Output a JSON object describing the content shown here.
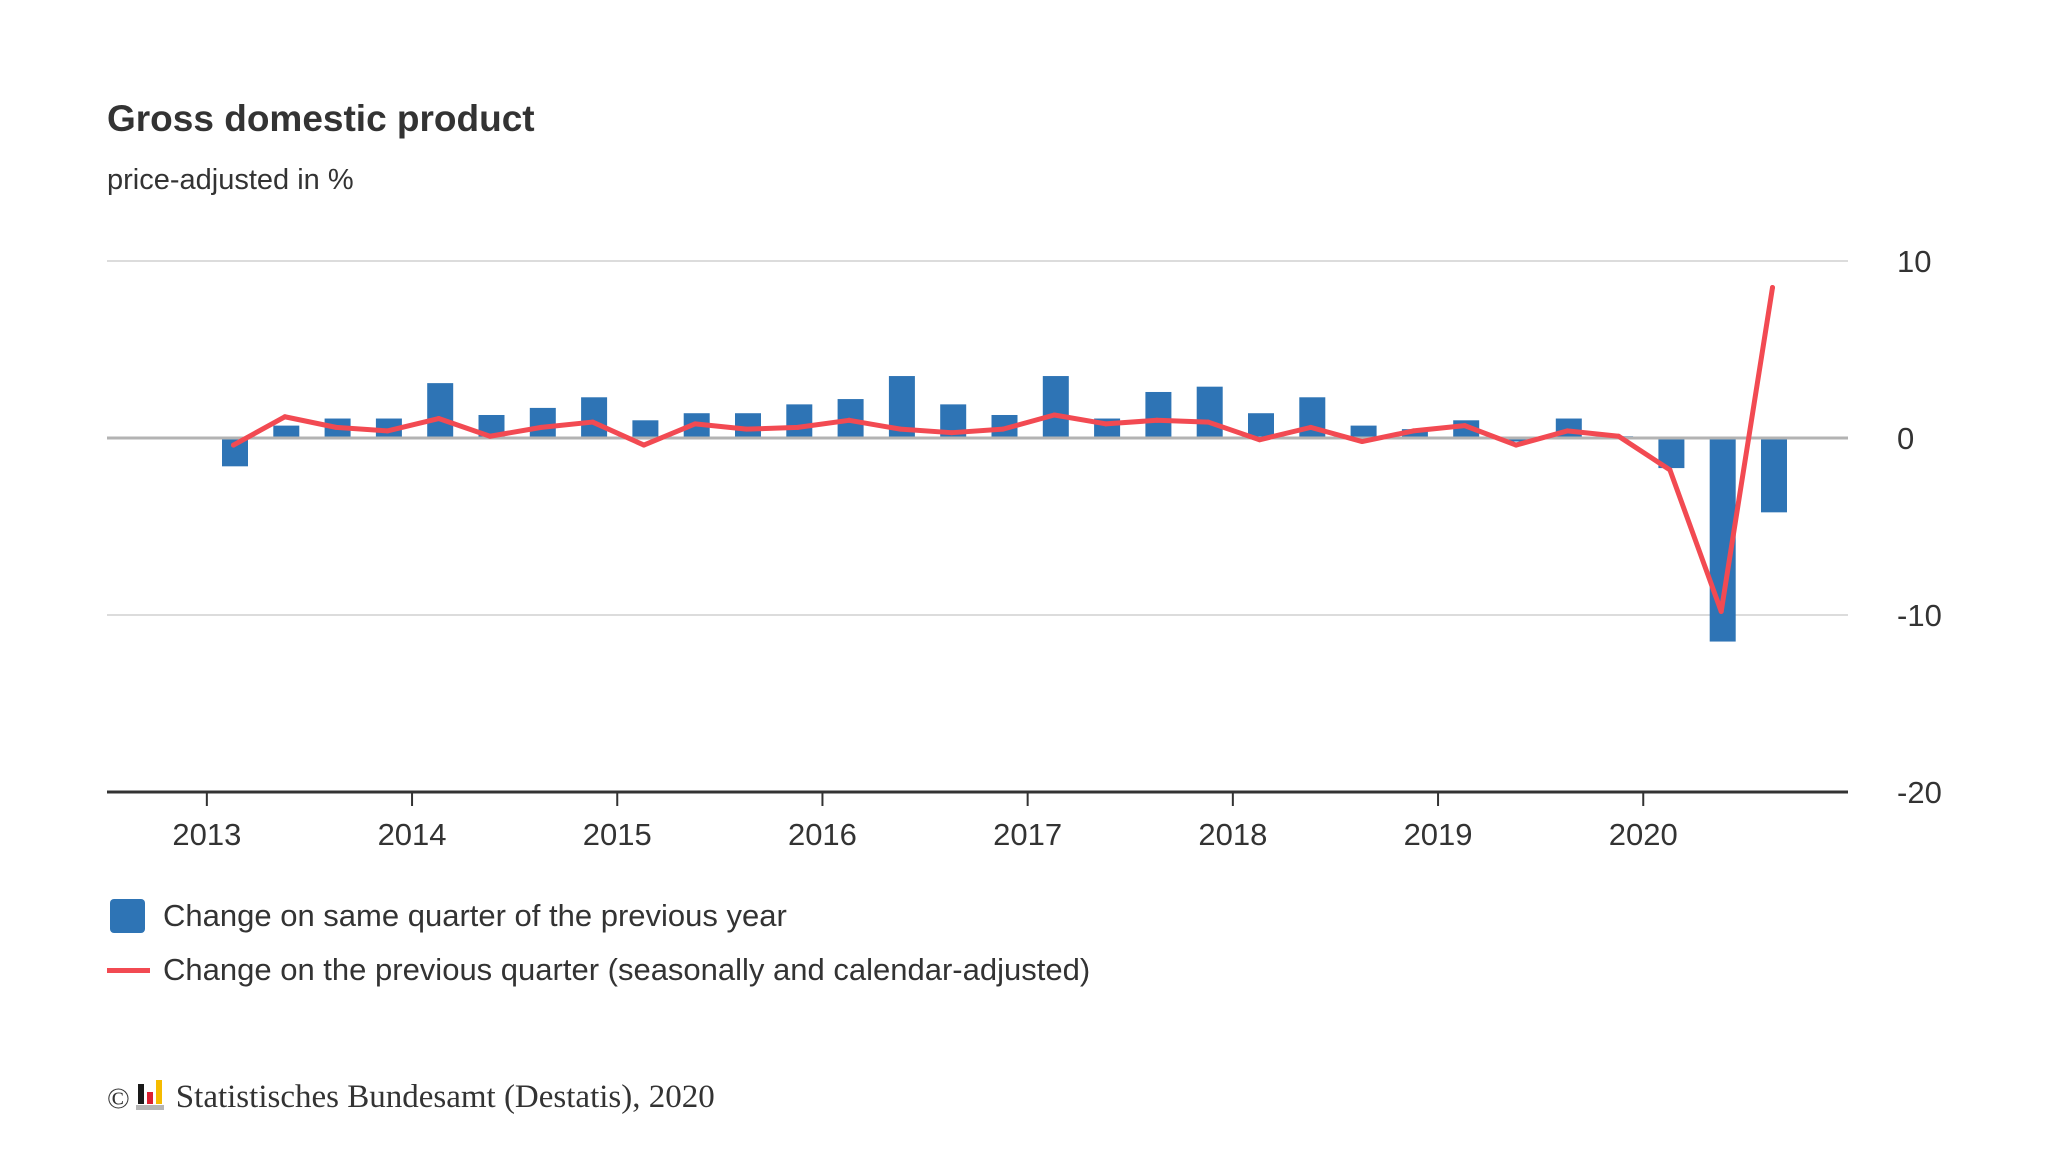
{
  "header": {
    "title": "Gross domestic product",
    "subtitle": "price-adjusted in %"
  },
  "chart_data": {
    "type": "bar",
    "title": "Gross domestic product",
    "subtitle": "price-adjusted in %",
    "xlabel": "",
    "ylabel": "%",
    "ylim": [
      -20,
      10
    ],
    "yticks": [
      10,
      0,
      -10,
      -20
    ],
    "ytick_labels": [
      "10",
      "0",
      "-10",
      "-20"
    ],
    "y_axis_side": "right",
    "grid": true,
    "xtick_labels": [
      "2013",
      "2014",
      "2015",
      "2016",
      "2017",
      "2018",
      "2019",
      "2020"
    ],
    "categories": [
      "2013 Q1",
      "2013 Q2",
      "2013 Q3",
      "2013 Q4",
      "2014 Q1",
      "2014 Q2",
      "2014 Q3",
      "2014 Q4",
      "2015 Q1",
      "2015 Q2",
      "2015 Q3",
      "2015 Q4",
      "2016 Q1",
      "2016 Q2",
      "2016 Q3",
      "2016 Q4",
      "2017 Q1",
      "2017 Q2",
      "2017 Q3",
      "2017 Q4",
      "2018 Q1",
      "2018 Q2",
      "2018 Q3",
      "2018 Q4",
      "2019 Q1",
      "2019 Q2",
      "2019 Q3",
      "2019 Q4",
      "2020 Q1",
      "2020 Q2",
      "2020 Q3"
    ],
    "series": [
      {
        "name": "Change on same quarter of the previous year",
        "type": "bar",
        "color": "#2e74b5",
        "values": [
          -1.6,
          0.7,
          1.1,
          1.1,
          3.1,
          1.3,
          1.7,
          2.3,
          1.0,
          1.4,
          1.4,
          1.9,
          2.2,
          3.5,
          1.9,
          1.3,
          3.5,
          1.1,
          2.6,
          2.9,
          1.4,
          2.3,
          0.7,
          0.5,
          1.0,
          -0.2,
          1.1,
          0.1,
          -1.7,
          -11.5,
          -4.2
        ]
      },
      {
        "name": "Change on the previous quarter (seasonally and calendar-adjusted)",
        "type": "line",
        "color": "#f24a52",
        "values": [
          -0.4,
          1.2,
          0.6,
          0.4,
          1.1,
          0.1,
          0.6,
          0.9,
          -0.4,
          0.8,
          0.5,
          0.6,
          1.0,
          0.5,
          0.3,
          0.5,
          1.3,
          0.8,
          1.0,
          0.9,
          -0.1,
          0.6,
          -0.2,
          0.4,
          0.7,
          -0.4,
          0.4,
          0.1,
          -1.8,
          -9.8,
          8.5
        ]
      }
    ],
    "legend_position": "bottom-left"
  },
  "legend": {
    "items": [
      {
        "label": "Change on same quarter of the previous year",
        "icon": "bar-swatch"
      },
      {
        "label": "Change on the previous quarter (seasonally and calendar-adjusted)",
        "icon": "line-swatch"
      }
    ]
  },
  "footer": {
    "copyright_symbol": "©",
    "logo": "destatis-logo-icon",
    "source": "Statistisches Bundesamt (Destatis), 2020"
  }
}
